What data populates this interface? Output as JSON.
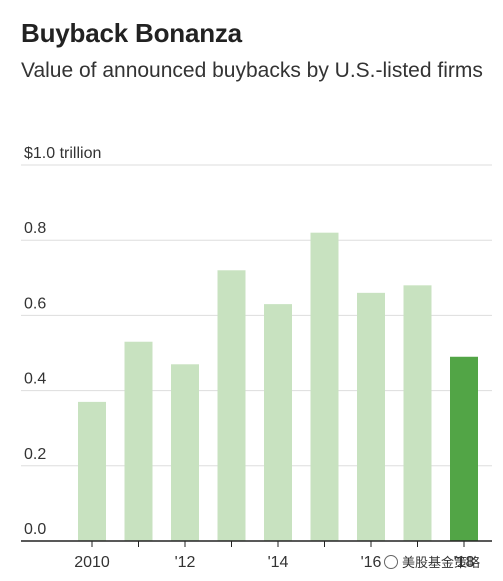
{
  "chart_data": {
    "type": "bar",
    "title": "Buyback Bonanza",
    "subtitle": "Value of announced buybacks by U.S.-listed firms",
    "categories": [
      "2010",
      "2011",
      "2012",
      "2013",
      "2014",
      "2015",
      "2016",
      "2017",
      "2018"
    ],
    "x_tick_labels": [
      "2010",
      "",
      "'12",
      "",
      "'14",
      "",
      "'16",
      "",
      "'18"
    ],
    "values": [
      0.37,
      0.53,
      0.47,
      0.72,
      0.63,
      0.82,
      0.66,
      0.68,
      0.49
    ],
    "y_tick_labels": [
      "0.0",
      "0.2",
      "0.4",
      "0.6",
      "0.8",
      "$1.0 trillion"
    ],
    "y_ticks": [
      0.0,
      0.2,
      0.4,
      0.6,
      0.8,
      1.0
    ],
    "ylim": [
      0,
      1.0
    ],
    "xlabel": "",
    "ylabel": "",
    "grid": true,
    "colors": {
      "bar": "#c8e2c0",
      "bar_highlight": "#52a546",
      "grid": "#dddddd",
      "axis": "#222222"
    },
    "highlight_index": 8
  },
  "watermark": {
    "text": "美股基金策略"
  }
}
